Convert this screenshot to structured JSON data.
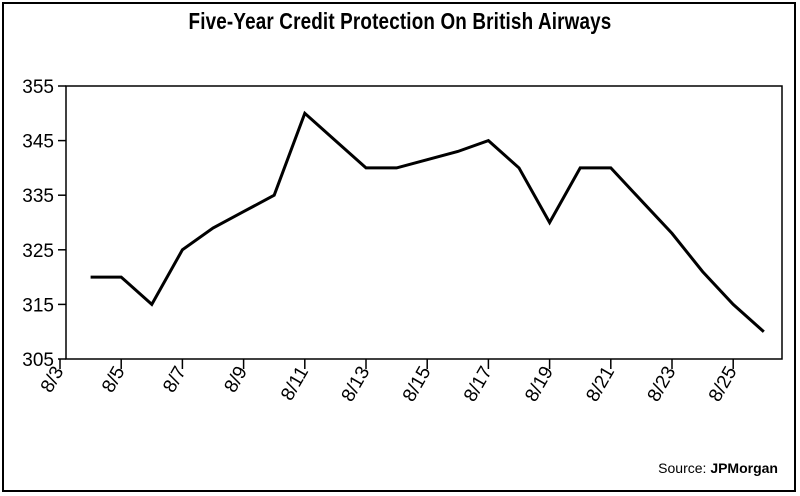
{
  "source_label": "Source:",
  "source_name": "JPMorgan",
  "chart_data": {
    "type": "line",
    "title": "Five-Year Credit Protection On British Airways",
    "xlabel": "",
    "ylabel": "",
    "ylim": [
      305,
      355
    ],
    "yticks": [
      305,
      315,
      325,
      335,
      345,
      355
    ],
    "xticks": [
      "8/3",
      "8/5",
      "8/7",
      "8/9",
      "8/11",
      "8/13",
      "8/15",
      "8/17",
      "8/19",
      "8/21",
      "8/23",
      "8/25"
    ],
    "grid": false,
    "legend": "none",
    "color": "#000000",
    "series": [
      {
        "x": [
          "8/4",
          "8/5",
          "8/6",
          "8/7",
          "8/8",
          "8/9",
          "8/10",
          "8/11",
          "8/12",
          "8/13",
          "8/14",
          "8/15",
          "8/16",
          "8/17",
          "8/18",
          "8/19",
          "8/20",
          "8/21",
          "8/22",
          "8/23",
          "8/24",
          "8/25",
          "8/26"
        ],
        "values": [
          320,
          320,
          315,
          325,
          329,
          332,
          335,
          350,
          345,
          340,
          340,
          341.5,
          343,
          345,
          340,
          330,
          340,
          340,
          334,
          328,
          321,
          315,
          310
        ]
      }
    ]
  }
}
